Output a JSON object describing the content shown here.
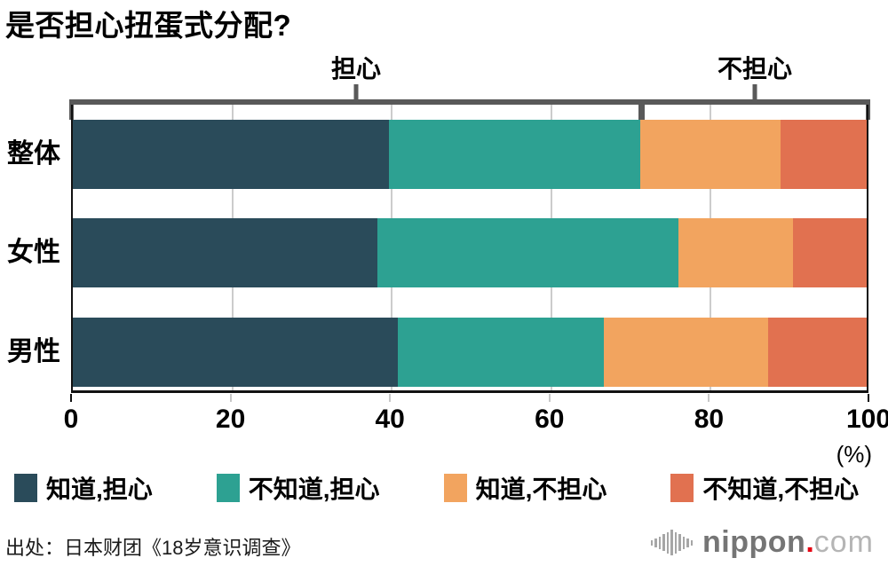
{
  "title": "是否担心扭蛋式分配?",
  "chart_data": {
    "type": "bar",
    "stacked": true,
    "orientation": "horizontal",
    "title": "是否担心扭蛋式分配?",
    "categories": [
      "整体",
      "女性",
      "男性"
    ],
    "series": [
      {
        "name": "知道,担心",
        "color": "#2a4b5a",
        "values": [
          39.8,
          38.4,
          40.9
        ]
      },
      {
        "name": "不知道,担心",
        "color": "#2da192",
        "values": [
          31.7,
          37.9,
          26.0
        ]
      },
      {
        "name": "知道,不担心",
        "color": "#f2a45f",
        "values": [
          17.7,
          14.4,
          20.7
        ]
      },
      {
        "name": "不知道,不担心",
        "color": "#e17150",
        "values": [
          10.8,
          9.3,
          12.4
        ]
      }
    ],
    "xlim": [
      0,
      100
    ],
    "xticks": [
      0,
      20,
      40,
      60,
      80,
      100
    ],
    "unit_label": "(%)",
    "grid": true,
    "legend_position": "bottom",
    "brackets": [
      {
        "label": "担心",
        "from": 0,
        "to": 71.5
      },
      {
        "label": "不担心",
        "from": 71.5,
        "to": 100
      }
    ]
  },
  "source": "出处：日本财团《18岁意识调查》",
  "logo": {
    "name": "nippon",
    "dot": ".",
    "tld": "com"
  },
  "colors": {
    "bracket": "#595959",
    "gridline": "#cccccc",
    "axis": "#111111",
    "tick_minor": "#c8c8c8"
  }
}
